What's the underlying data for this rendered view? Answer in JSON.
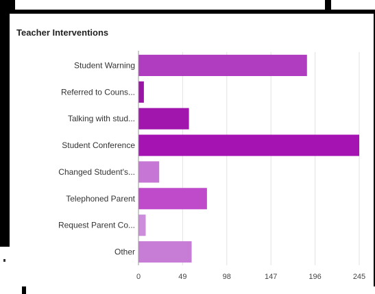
{
  "chart_data": {
    "type": "bar",
    "orientation": "horizontal",
    "title": "Teacher Interventions",
    "categories": [
      "Student Warning",
      "Referred to Couns...",
      "Talking with stud...",
      "Student Conference",
      "Changed Student's...",
      "Telephoned Parent",
      "Request Parent Co...",
      "Other"
    ],
    "values": [
      187,
      6,
      56,
      245,
      23,
      76,
      8,
      59
    ],
    "xticks": [
      "0",
      "49",
      "98",
      "147",
      "196",
      "245"
    ],
    "xlim": [
      0,
      245
    ],
    "grid": true,
    "bar_colors": [
      "#b03cc0",
      "#9a14a6",
      "#a116ad",
      "#a514b3",
      "#c676d4",
      "#bf4bcb",
      "#cc8ddc",
      "#c77dd5"
    ]
  }
}
